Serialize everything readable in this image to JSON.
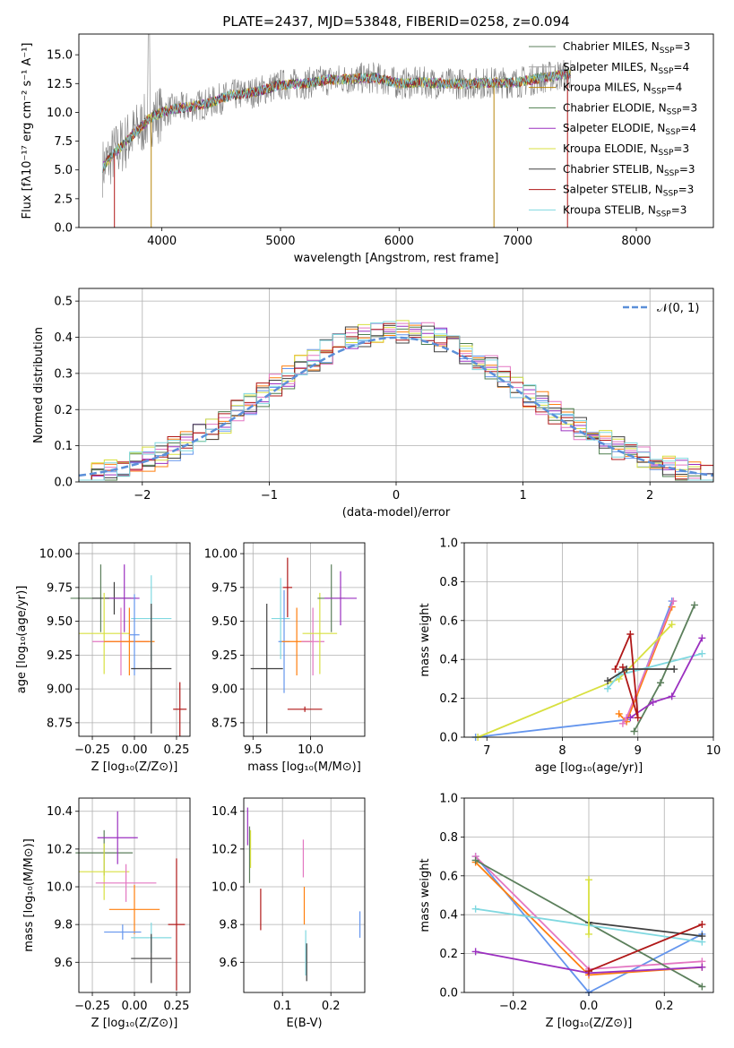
{
  "chart_data": [
    {
      "id": "spectrum",
      "type": "line",
      "title": "PLATE=2437, MJD=53848, FIBERID=0258, z=0.094",
      "xlabel": "wavelength [Angstrom, rest frame]",
      "ylabel": "Flux [fλ10⁻¹⁷ erg cm⁻² s⁻¹ A⁻¹]",
      "xlim": [
        3300,
        8650
      ],
      "ylim": [
        0,
        16.8
      ],
      "xticks": [
        4000,
        5000,
        6000,
        7000,
        8000
      ],
      "yticks": [
        0.0,
        2.5,
        5.0,
        7.5,
        10.0,
        12.5,
        15.0
      ],
      "legend_position": "right",
      "series": [
        {
          "name": "Chabrier MILES, N_SSP=3",
          "label": "Chabrier MILES, N",
          "sub": "SSP",
          "suffix": "=3",
          "color": "#5b7f5b"
        },
        {
          "name": "Salpeter MILES, N_SSP=4",
          "label": "Salpeter MILES, N",
          "sub": "SSP",
          "suffix": "=4",
          "color": "#a1a1a1"
        },
        {
          "name": "Kroupa MILES, N_SSP=4",
          "label": "Kroupa MILES, N",
          "sub": "SSP",
          "suffix": "=4",
          "color": "#b8860b"
        },
        {
          "name": "Chabrier ELODIE, N_SSP=3",
          "label": "Chabrier ELODIE, N",
          "sub": "SSP",
          "suffix": "=3",
          "color": "#4f7f4f"
        },
        {
          "name": "Salpeter ELODIE, N_SSP=4",
          "label": "Salpeter ELODIE, N",
          "sub": "SSP",
          "suffix": "=4",
          "color": "#9b30c0"
        },
        {
          "name": "Kroupa ELODIE, N_SSP=3",
          "label": "Kroupa ELODIE, N",
          "sub": "SSP",
          "suffix": "=3",
          "color": "#d8e040"
        },
        {
          "name": "Chabrier STELIB, N_SSP=3",
          "label": "Chabrier STELIB, N",
          "sub": "SSP",
          "suffix": "=3",
          "color": "#404040"
        },
        {
          "name": "Salpeter STELIB, N_SSP=3",
          "label": "Salpeter STELIB, N",
          "sub": "SSP",
          "suffix": "=3",
          "color": "#b01818"
        },
        {
          "name": "Kroupa STELIB, N_SSP=3",
          "label": "Kroupa STELIB, N",
          "sub": "SSP",
          "suffix": "=3",
          "color": "#80d8e0"
        }
      ],
      "continuum": [
        [
          3500,
          5.2
        ],
        [
          3600,
          6.5
        ],
        [
          3700,
          7.5
        ],
        [
          3800,
          8.5
        ],
        [
          3900,
          9.5
        ],
        [
          4000,
          10.0
        ],
        [
          4100,
          10.3
        ],
        [
          4200,
          10.4
        ],
        [
          4300,
          10.6
        ],
        [
          4400,
          10.8
        ],
        [
          4500,
          11.2
        ],
        [
          4600,
          11.5
        ],
        [
          4700,
          11.6
        ],
        [
          4800,
          11.8
        ],
        [
          4900,
          12.1
        ],
        [
          5000,
          12.4
        ],
        [
          5200,
          12.5
        ],
        [
          5400,
          12.8
        ],
        [
          5600,
          12.9
        ],
        [
          5800,
          13.0
        ],
        [
          6000,
          12.5
        ],
        [
          6200,
          12.6
        ],
        [
          6400,
          12.5
        ],
        [
          6600,
          12.5
        ],
        [
          6800,
          12.6
        ],
        [
          7000,
          12.6
        ],
        [
          7200,
          13.0
        ],
        [
          7400,
          13.3
        ],
        [
          7450,
          13.3
        ]
      ]
    },
    {
      "id": "residuals",
      "type": "area",
      "xlabel": "(data-model)/error",
      "ylabel": "Normed distribution",
      "xlim": [
        -2.5,
        2.5
      ],
      "ylim": [
        0,
        0.535
      ],
      "xticks": [
        -2,
        -1,
        0,
        1,
        2
      ],
      "yticks": [
        0.0,
        0.1,
        0.2,
        0.3,
        0.4,
        0.5
      ],
      "legend": "𝒩(0, 1)",
      "legend_position": "top-right",
      "series_colors": [
        "#6495ed",
        "#ff7f0e",
        "#4f7f4f",
        "#9b30c0",
        "#e377c2",
        "#d8e040",
        "#404040",
        "#b01818",
        "#80d8e0"
      ]
    },
    {
      "id": "age_vs_Z",
      "type": "scatter",
      "xlabel": "Z [log₁₀(Z/Z⊙)]",
      "ylabel": "age  [log₁₀(age/yr)]",
      "xlim": [
        -0.33,
        0.33
      ],
      "ylim": [
        8.65,
        10.08
      ],
      "xticks": [
        -0.25,
        0.0,
        0.25
      ],
      "yticks": [
        8.75,
        9.0,
        9.25,
        9.5,
        9.75,
        10.0
      ],
      "points": [
        {
          "color": "#5b7f5b",
          "x": -0.2,
          "xerr": 0.18,
          "y": 9.67,
          "yerr": 0.25
        },
        {
          "color": "#404040",
          "x": -0.12,
          "xerr": 0.13,
          "y": 9.67,
          "yerr": 0.12
        },
        {
          "color": "#9b30c0",
          "x": -0.06,
          "xerr": 0.09,
          "y": 9.67,
          "yerr": 0.25
        },
        {
          "color": "#d8e040",
          "x": -0.18,
          "xerr": 0.15,
          "y": 9.41,
          "yerr": 0.3
        },
        {
          "color": "#e377c2",
          "x": -0.08,
          "xerr": 0.17,
          "y": 9.35,
          "yerr": 0.25
        },
        {
          "color": "#ff7f0e",
          "x": -0.03,
          "xerr": 0.15,
          "y": 9.35,
          "yerr": 0.25
        },
        {
          "color": "#80d8e0",
          "x": 0.1,
          "xerr": 0.12,
          "y": 9.52,
          "yerr": 0.32
        },
        {
          "color": "#6495ed",
          "x": 0.0,
          "xerr": 0.03,
          "y": 9.4,
          "yerr": 0.3
        },
        {
          "color": "#404040",
          "x": 0.1,
          "xerr": 0.12,
          "y": 9.15,
          "yerr": 0.48
        },
        {
          "color": "#b01818",
          "x": 0.27,
          "xerr": 0.04,
          "y": 8.85,
          "yerr": 0.2
        }
      ]
    },
    {
      "id": "age_vs_mass",
      "type": "scatter",
      "xlabel": "mass [log₁₀(M/M⊙)]",
      "ylabel": "",
      "xlim": [
        9.42,
        10.47
      ],
      "ylim": [
        8.65,
        10.08
      ],
      "xticks": [
        9.5,
        10.0
      ],
      "yticks": [
        8.75,
        9.0,
        9.25,
        9.5,
        9.75,
        10.0
      ],
      "points": [
        {
          "color": "#404040",
          "x": 9.62,
          "xerr": 0.14,
          "y": 9.15,
          "yerr": 0.48
        },
        {
          "color": "#80d8e0",
          "x": 9.74,
          "xerr": 0.08,
          "y": 9.52,
          "yerr": 0.3
        },
        {
          "color": "#6495ed",
          "x": 9.77,
          "xerr": 0.05,
          "y": 9.35,
          "yerr": 0.38
        },
        {
          "color": "#b01818",
          "x": 9.8,
          "xerr": 0.04,
          "y": 9.75,
          "yerr": 0.22
        },
        {
          "color": "#b01818",
          "x": 9.95,
          "xerr": 0.15,
          "y": 8.85,
          "yerr": 0.02
        },
        {
          "color": "#ff7f0e",
          "x": 9.88,
          "xerr": 0.13,
          "y": 9.35,
          "yerr": 0.25
        },
        {
          "color": "#e377c2",
          "x": 10.02,
          "xerr": 0.1,
          "y": 9.35,
          "yerr": 0.25
        },
        {
          "color": "#d8e040",
          "x": 10.08,
          "xerr": 0.15,
          "y": 9.41,
          "yerr": 0.3
        },
        {
          "color": "#5b7f5b",
          "x": 10.18,
          "xerr": 0.12,
          "y": 9.67,
          "yerr": 0.25
        },
        {
          "color": "#9b30c0",
          "x": 10.26,
          "xerr": 0.14,
          "y": 9.67,
          "yerr": 0.2
        }
      ]
    },
    {
      "id": "weight_vs_age",
      "type": "line",
      "xlabel": "age  [log₁₀(age/yr)]",
      "ylabel": "mass weight",
      "xlim": [
        6.7,
        10.0
      ],
      "ylim": [
        0,
        1
      ],
      "xticks": [
        7,
        8,
        9,
        10
      ],
      "yticks": [
        0.0,
        0.2,
        0.4,
        0.6,
        0.8,
        1.0
      ],
      "series": [
        {
          "color": "#6495ed",
          "x": [
            6.85,
            8.85,
            9.45
          ],
          "y": [
            0.0,
            0.09,
            0.7
          ]
        },
        {
          "color": "#ff7f0e",
          "x": [
            8.75,
            8.85,
            9.45
          ],
          "y": [
            0.12,
            0.08,
            0.67
          ]
        },
        {
          "color": "#e377c2",
          "x": [
            8.8,
            8.85,
            9.47
          ],
          "y": [
            0.07,
            0.1,
            0.7
          ]
        },
        {
          "color": "#d8e040",
          "x": [
            6.88,
            8.75,
            9.45
          ],
          "y": [
            0.0,
            0.3,
            0.58
          ]
        },
        {
          "color": "#80d8e0",
          "x": [
            8.6,
            8.75,
            9.85
          ],
          "y": [
            0.25,
            0.32,
            0.43
          ]
        },
        {
          "color": "#5b7f5b",
          "x": [
            8.95,
            9.3,
            9.75
          ],
          "y": [
            0.03,
            0.28,
            0.68
          ]
        },
        {
          "color": "#9b30c0",
          "x": [
            8.9,
            9.2,
            9.45,
            9.85
          ],
          "y": [
            0.1,
            0.18,
            0.21,
            0.51
          ]
        },
        {
          "color": "#b01818",
          "x": [
            8.7,
            8.9,
            9.0,
            8.8
          ],
          "y": [
            0.35,
            0.53,
            0.1,
            0.36
          ]
        },
        {
          "color": "#404040",
          "x": [
            8.6,
            8.85,
            9.48
          ],
          "y": [
            0.29,
            0.35,
            0.35
          ]
        }
      ]
    },
    {
      "id": "mass_vs_Z",
      "type": "scatter",
      "xlabel": "Z [log₁₀(Z/Z⊙)]",
      "ylabel": "mass [log₁₀(M/M⊙)]",
      "xlim": [
        -0.33,
        0.33
      ],
      "ylim": [
        9.44,
        10.47
      ],
      "xticks": [
        -0.25,
        0.0,
        0.25
      ],
      "yticks": [
        9.6,
        9.8,
        10.0,
        10.2,
        10.4
      ],
      "points": [
        {
          "color": "#5b7f5b",
          "x": -0.18,
          "xerr": 0.17,
          "y": 10.18,
          "yerr": 0.12
        },
        {
          "color": "#9b30c0",
          "x": -0.1,
          "xerr": 0.12,
          "y": 10.26,
          "yerr": 0.14
        },
        {
          "color": "#d8e040",
          "x": -0.18,
          "xerr": 0.15,
          "y": 10.08,
          "yerr": 0.15
        },
        {
          "color": "#e377c2",
          "x": -0.05,
          "xerr": 0.18,
          "y": 10.02,
          "yerr": 0.1
        },
        {
          "color": "#ff7f0e",
          "x": 0.0,
          "xerr": 0.15,
          "y": 9.88,
          "yerr": 0.13
        },
        {
          "color": "#6495ed",
          "x": -0.07,
          "xerr": 0.11,
          "y": 9.76,
          "yerr": 0.04
        },
        {
          "color": "#80d8e0",
          "x": 0.1,
          "xerr": 0.12,
          "y": 9.73,
          "yerr": 0.08
        },
        {
          "color": "#404040",
          "x": 0.1,
          "xerr": 0.12,
          "y": 9.62,
          "yerr": 0.13
        },
        {
          "color": "#b01818",
          "x": 0.25,
          "xerr": 0.05,
          "y": 9.8,
          "yerr": 0.35
        }
      ]
    },
    {
      "id": "mass_vs_ebv",
      "type": "scatter",
      "xlabel": "E(B-V)",
      "ylabel": "",
      "xlim": [
        0.02,
        0.27
      ],
      "ylim": [
        9.44,
        10.47
      ],
      "xticks": [
        0.1,
        0.2
      ],
      "yticks": [
        9.6,
        9.8,
        10.0,
        10.2,
        10.4
      ],
      "points": [
        {
          "color": "#9b30c0",
          "x": 0.028,
          "y": 10.32,
          "yerr": 0.1
        },
        {
          "color": "#5b7f5b",
          "x": 0.032,
          "y": 10.17,
          "yerr": 0.15
        },
        {
          "color": "#d8e040",
          "x": 0.034,
          "y": 10.2,
          "yerr": 0.1
        },
        {
          "color": "#b01818",
          "x": 0.055,
          "y": 9.88,
          "yerr": 0.11
        },
        {
          "color": "#e377c2",
          "x": 0.143,
          "y": 10.15,
          "yerr": 0.1
        },
        {
          "color": "#ff7f0e",
          "x": 0.145,
          "y": 9.9,
          "yerr": 0.1
        },
        {
          "color": "#80d8e0",
          "x": 0.148,
          "y": 9.65,
          "yerr": 0.12
        },
        {
          "color": "#404040",
          "x": 0.15,
          "y": 9.6,
          "yerr": 0.1
        },
        {
          "color": "#6495ed",
          "x": 0.26,
          "y": 9.8,
          "yerr": 0.07
        }
      ]
    },
    {
      "id": "weight_vs_Z",
      "type": "line",
      "xlabel": "Z [log₁₀(Z/Z⊙)]",
      "ylabel": "mass weight",
      "xlim": [
        -0.33,
        0.33
      ],
      "ylim": [
        0,
        1
      ],
      "xticks": [
        -0.2,
        0.0,
        0.2
      ],
      "yticks": [
        0.0,
        0.2,
        0.4,
        0.6,
        0.8,
        1.0
      ],
      "series": [
        {
          "color": "#6495ed",
          "x": [
            -0.3,
            0.0,
            0.3
          ],
          "y": [
            0.7,
            0.0,
            0.3
          ]
        },
        {
          "color": "#e377c2",
          "x": [
            -0.3,
            0.0,
            0.3
          ],
          "y": [
            0.7,
            0.12,
            0.16
          ]
        },
        {
          "color": "#ff7f0e",
          "x": [
            -0.3,
            0.0,
            0.3
          ],
          "y": [
            0.67,
            0.09,
            0.13
          ]
        },
        {
          "color": "#5b7f5b",
          "x": [
            -0.3,
            0.3
          ],
          "y": [
            0.68,
            0.03
          ]
        },
        {
          "color": "#9b30c0",
          "x": [
            -0.3,
            0.0,
            0.3
          ],
          "y": [
            0.21,
            0.1,
            0.13
          ]
        },
        {
          "color": "#80d8e0",
          "x": [
            -0.3,
            0.3
          ],
          "y": [
            0.43,
            0.26
          ]
        },
        {
          "color": "#404040",
          "x": [
            0.0,
            0.3
          ],
          "y": [
            0.36,
            0.29
          ]
        },
        {
          "color": "#b01818",
          "x": [
            0.0,
            0.3
          ],
          "y": [
            0.11,
            0.35
          ]
        },
        {
          "color": "#d8e040",
          "x": [
            0.0,
            0.0
          ],
          "y": [
            0.3,
            0.58
          ]
        }
      ]
    }
  ]
}
